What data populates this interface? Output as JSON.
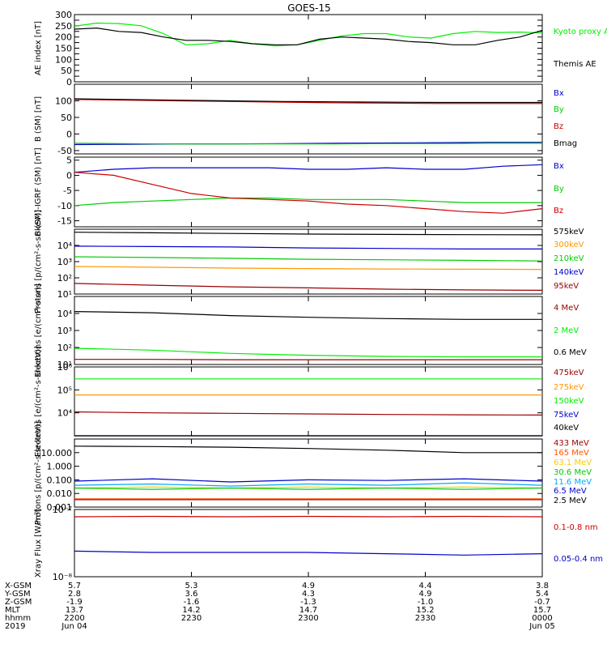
{
  "title": "GOES-15",
  "chart_data": [
    {
      "type": "line",
      "ylabel": "AE index [nT]",
      "ylim": [
        0,
        300
      ],
      "yscale": "linear",
      "yticks": [
        0,
        25,
        50,
        75,
        100,
        125,
        150,
        175,
        200,
        225,
        250,
        275,
        300
      ],
      "yticklabels": [
        "0",
        "",
        "50",
        "",
        "100",
        "",
        "150",
        "",
        "200",
        "",
        "250",
        "",
        "300"
      ],
      "series": [
        {
          "name": "Kyoto proxy AE",
          "color": "#00ee00",
          "values": [
            248,
            262,
            260,
            250,
            215,
            165,
            170,
            185,
            170,
            160,
            165,
            185,
            205,
            215,
            215,
            200,
            195,
            215,
            225,
            220,
            222,
            218
          ]
        },
        {
          "name": "Themis AE",
          "color": "#000000",
          "values": [
            235,
            240,
            225,
            220,
            200,
            185,
            185,
            180,
            170,
            165,
            165,
            190,
            200,
            195,
            190,
            180,
            175,
            165,
            165,
            185,
            200,
            230
          ]
        }
      ]
    },
    {
      "type": "line",
      "ylabel": "B (SM) [nT]",
      "ylim": [
        -60,
        150
      ],
      "yscale": "linear",
      "yticks": [
        -50,
        0,
        50,
        100
      ],
      "yticklabels": [
        "-50",
        "0",
        "50",
        "100"
      ],
      "series": [
        {
          "name": "Bx",
          "color": "#0000cc",
          "values": [
            -32,
            -31,
            -30,
            -30,
            -29,
            -28,
            -27,
            -26,
            -25,
            -25
          ]
        },
        {
          "name": "By",
          "color": "#00cc00",
          "values": [
            -28,
            -29,
            -30,
            -30,
            -30,
            -30,
            -29,
            -29,
            -28,
            -28
          ]
        },
        {
          "name": "Bz",
          "color": "#cc0000",
          "values": [
            104,
            102,
            100,
            98,
            96,
            94,
            93,
            92,
            92,
            92
          ]
        },
        {
          "name": "Bmag",
          "color": "#000000",
          "values": [
            106,
            104,
            102,
            100,
            98,
            97,
            96,
            95,
            95,
            95
          ]
        }
      ]
    },
    {
      "type": "line",
      "ylabel": "B (SM)-IGRF (SM) [nT]",
      "ylim": [
        -17,
        6
      ],
      "yscale": "linear",
      "yticks": [
        -15,
        -10,
        -5,
        0,
        5
      ],
      "yticklabels": [
        "-15",
        "-10",
        "-5",
        "0",
        "5"
      ],
      "series": [
        {
          "name": "Bx",
          "color": "#0000cc",
          "values": [
            1,
            2,
            2.5,
            2.5,
            2.5,
            2.5,
            2,
            2,
            2.5,
            2,
            2,
            3,
            3.5
          ]
        },
        {
          "name": "By",
          "color": "#00cc00",
          "values": [
            -10,
            -9,
            -8.5,
            -8,
            -7.5,
            -7.5,
            -8,
            -8,
            -8,
            -8.5,
            -9,
            -9,
            -9
          ]
        },
        {
          "name": "Bz",
          "color": "#cc0000",
          "values": [
            1,
            0,
            -3,
            -6,
            -7.5,
            -8,
            -8.5,
            -9.5,
            -10,
            -11,
            -12,
            -12.5,
            -11
          ]
        }
      ]
    },
    {
      "type": "line",
      "ylabel": "Protons [p/(cm²-s-sr-keV)]",
      "ylim": [
        10,
        100000
      ],
      "yscale": "log",
      "yticks": [
        10,
        100,
        1000,
        10000
      ],
      "yticklabels": [
        "10¹",
        "10²",
        "10³",
        "10⁴"
      ],
      "series": [
        {
          "name": "575keV",
          "color": "#000000",
          "values": [
            65000,
            60000,
            55000,
            50000,
            48000,
            46000,
            45000
          ]
        },
        {
          "name": "300keV",
          "color": "#ff9900",
          "values": [
            500,
            450,
            400,
            370,
            350,
            340,
            330
          ]
        },
        {
          "name": "210keV",
          "color": "#00cc00",
          "values": [
            2000,
            1800,
            1600,
            1400,
            1300,
            1200,
            1100
          ]
        },
        {
          "name": "140keV",
          "color": "#0000cc",
          "values": [
            9000,
            8500,
            8000,
            7000,
            6500,
            6000,
            6000
          ]
        },
        {
          "name": "95keV",
          "color": "#990000",
          "values": [
            45,
            35,
            28,
            24,
            20,
            18,
            17
          ]
        }
      ]
    },
    {
      "type": "line",
      "ylabel": "Electrons [e/(cm²-s-sr)]",
      "ylim": [
        10,
        100000
      ],
      "yscale": "log",
      "yticks": [
        10,
        100,
        1000,
        10000
      ],
      "yticklabels": [
        "10¹",
        "10²",
        "10³",
        "10⁴"
      ],
      "series": [
        {
          "name": "4 MeV",
          "color": "#990000",
          "values": [
            20,
            20,
            19,
            19,
            19,
            19,
            19
          ]
        },
        {
          "name": "2 MeV",
          "color": "#00ee00",
          "values": [
            90,
            70,
            45,
            35,
            30,
            28,
            28
          ]
        },
        {
          "name": "0.6 MeV",
          "color": "#000000",
          "values": [
            13000,
            11000,
            7500,
            6000,
            5000,
            4500,
            4500
          ]
        }
      ]
    },
    {
      "type": "line",
      "ylabel": "Electrons [e/(cm²-s-sr-keV)]",
      "ylim": [
        1000,
        1000000
      ],
      "yscale": "log",
      "yticks": [
        10000,
        100000,
        1000000
      ],
      "yticklabels": [
        "10⁴",
        "10⁵",
        "10⁶"
      ],
      "series": [
        {
          "name": "475keV",
          "color": "#990000",
          "values": [
            11000,
            10000,
            9500,
            9000,
            8500,
            8200,
            8000
          ]
        },
        {
          "name": "275keV",
          "color": "#ff9900",
          "values": [
            60000,
            60000,
            60000,
            60000,
            60000,
            60000,
            60000
          ]
        },
        {
          "name": "150keV",
          "color": "#00ee00",
          "values": [
            300000,
            300000,
            300000,
            300000,
            300000,
            300000,
            300000
          ]
        },
        {
          "name": "75keV",
          "color": "#0000cc",
          "values": [
            1000,
            1000,
            1000,
            1000,
            1000,
            1000,
            1000
          ]
        },
        {
          "name": "40keV",
          "color": "#000000",
          "values": [
            1000,
            1000,
            1000,
            1000,
            1000,
            1000,
            1000
          ]
        }
      ]
    },
    {
      "type": "line",
      "ylabel": "Protons [p/(cm²-s-sr-keV)]",
      "ylim": [
        0.001,
        100
      ],
      "yscale": "log",
      "yticks": [
        0.001,
        0.01,
        0.1,
        1,
        10
      ],
      "yticklabels": [
        "0.001",
        "0.010",
        "0.100",
        "1.000",
        "10.000"
      ],
      "series": [
        {
          "name": "433 MeV",
          "color": "#990000",
          "values": [
            0.0035,
            0.0035,
            0.0035,
            0.0035,
            0.0035,
            0.0035,
            0.0035
          ]
        },
        {
          "name": "165 MeV",
          "color": "#ff5500",
          "values": [
            0.004,
            0.004,
            0.004,
            0.004,
            0.004,
            0.004,
            0.004
          ]
        },
        {
          "name": "63.1 MeV",
          "color": "#ffcc00",
          "values": [
            0.025,
            0.03,
            0.025,
            0.03,
            0.025,
            0.03,
            0.025
          ]
        },
        {
          "name": "30.6 MeV",
          "color": "#00cc00",
          "values": [
            0.025,
            0.02,
            0.025,
            0.02,
            0.025,
            0.02,
            0.025
          ]
        },
        {
          "name": "11.6 MeV",
          "color": "#00aaff",
          "values": [
            0.04,
            0.05,
            0.035,
            0.05,
            0.04,
            0.06,
            0.04
          ]
        },
        {
          "name": "6.5 MeV",
          "color": "#0000cc",
          "values": [
            0.08,
            0.12,
            0.07,
            0.1,
            0.09,
            0.12,
            0.08
          ]
        },
        {
          "name": "2.5 MeV",
          "color": "#000000",
          "values": [
            30,
            28,
            25,
            20,
            15,
            10,
            10
          ]
        }
      ]
    },
    {
      "type": "line",
      "ylabel": "Xray Flux [W/m²]",
      "ylim": [
        1e-08,
        1e-07
      ],
      "yscale": "log",
      "yticks": [
        1e-08,
        1e-07
      ],
      "yticklabels": [
        "10⁻⁸",
        "10⁻⁷"
      ],
      "series": [
        {
          "name": "0.1-0.8 nm",
          "color": "#cc0000",
          "values": [
            7.8e-08,
            7.9e-08,
            7.8e-08,
            7.9e-08,
            7.8e-08,
            7.9e-08,
            7.8e-08
          ]
        },
        {
          "name": "0.05-0.4 nm",
          "color": "#0000cc",
          "values": [
            2.4e-08,
            2.3e-08,
            2.3e-08,
            2.3e-08,
            2.2e-08,
            2.1e-08,
            2.2e-08
          ]
        }
      ]
    }
  ],
  "x_axis": {
    "row_labels": [
      "X-GSM",
      "Y-GSM",
      "Z-GSM",
      "MLT",
      "hhmm",
      "2019"
    ],
    "columns": [
      [
        "5.7",
        "2.8",
        "-1.9",
        "13.7",
        "2200",
        "Jun 04"
      ],
      [
        "5.3",
        "3.6",
        "-1.6",
        "14.2",
        "2230",
        ""
      ],
      [
        "4.9",
        "4.3",
        "-1.3",
        "14.7",
        "2300",
        ""
      ],
      [
        "4.4",
        "4.9",
        "-1.0",
        "15.2",
        "2330",
        ""
      ],
      [
        "3.8",
        "5.4",
        "-0.7",
        "15.7",
        "0000",
        "Jun 05"
      ]
    ]
  }
}
